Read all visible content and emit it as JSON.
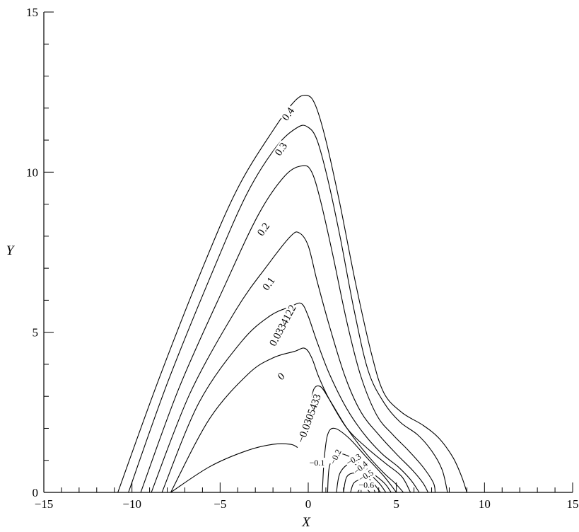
{
  "chart_data": {
    "type": "contour",
    "xlabel": "X",
    "ylabel": "Y",
    "xlim": [
      -15,
      15
    ],
    "ylim": [
      0,
      15
    ],
    "x_ticks": [
      "-15",
      "-10",
      "-5",
      "0",
      "5",
      "10",
      "15"
    ],
    "y_ticks": [
      "0",
      "5",
      "10",
      "15"
    ],
    "contours": [
      {
        "level": "0.4",
        "points": [
          [
            -10.8,
            0
          ],
          [
            -8.5,
            3.5
          ],
          [
            -6,
            7
          ],
          [
            -4,
            9.5
          ],
          [
            -2,
            11.3
          ],
          [
            -0.8,
            12.2
          ],
          [
            -0.1,
            12.4
          ],
          [
            0.4,
            12.1
          ],
          [
            1,
            11
          ],
          [
            1.8,
            9
          ],
          [
            2.7,
            6.5
          ],
          [
            3.6,
            4.3
          ],
          [
            4.3,
            3.1
          ],
          [
            5.3,
            2.5
          ],
          [
            6.5,
            2.1
          ],
          [
            7.4,
            1.7
          ],
          [
            8.2,
            1.1
          ],
          [
            8.7,
            0.5
          ],
          [
            9,
            0
          ]
        ]
      },
      {
        "level": "0.3",
        "points": [
          [
            -10.2,
            0
          ],
          [
            -8,
            3.4
          ],
          [
            -5.5,
            6.8
          ],
          [
            -3.5,
            9.3
          ],
          [
            -1.8,
            10.8
          ],
          [
            -0.6,
            11.4
          ],
          [
            0,
            11.4
          ],
          [
            0.5,
            11
          ],
          [
            1.1,
            9.8
          ],
          [
            1.8,
            8
          ],
          [
            2.6,
            5.7
          ],
          [
            3.4,
            3.8
          ],
          [
            4.3,
            2.8
          ],
          [
            5.2,
            2.2
          ],
          [
            6.2,
            1.8
          ],
          [
            7,
            1.3
          ],
          [
            7.6,
            0.7
          ],
          [
            7.9,
            0
          ]
        ]
      },
      {
        "level": "0.2",
        "points": [
          [
            -9.5,
            0
          ],
          [
            -7.3,
            3.3
          ],
          [
            -4.7,
            6.5
          ],
          [
            -2.8,
            8.7
          ],
          [
            -1.3,
            9.9
          ],
          [
            -0.3,
            10.2
          ],
          [
            0.2,
            10
          ],
          [
            0.7,
            9.1
          ],
          [
            1.4,
            7.4
          ],
          [
            2.2,
            5.3
          ],
          [
            3,
            3.6
          ],
          [
            3.9,
            2.4
          ],
          [
            4.8,
            1.8
          ],
          [
            5.7,
            1.3
          ],
          [
            6.5,
            0.8
          ],
          [
            7.1,
            0.3
          ],
          [
            7.2,
            0
          ]
        ]
      },
      {
        "level": "0.1",
        "points": [
          [
            -8.9,
            0
          ],
          [
            -6.7,
            3.1
          ],
          [
            -4.1,
            5.7
          ],
          [
            -2.3,
            7.1
          ],
          [
            -1,
            8
          ],
          [
            -0.5,
            8.1
          ],
          [
            0,
            7.7
          ],
          [
            0.5,
            6.6
          ],
          [
            1.2,
            5.2
          ],
          [
            2.1,
            3.6
          ],
          [
            3,
            2.5
          ],
          [
            4,
            1.8
          ],
          [
            5,
            1.2
          ],
          [
            5.9,
            0.7
          ],
          [
            6.5,
            0.3
          ],
          [
            6.8,
            0
          ]
        ]
      },
      {
        "level": "0.0334122",
        "points": [
          [
            -8.3,
            0
          ],
          [
            -6.2,
            2.8
          ],
          [
            -3.8,
            4.7
          ],
          [
            -2.2,
            5.5
          ],
          [
            -1,
            5.8
          ],
          [
            -0.4,
            5.9
          ],
          [
            0,
            5.5
          ],
          [
            0.5,
            4.7
          ],
          [
            1.2,
            3.7
          ],
          [
            2.2,
            2.6
          ],
          [
            3.2,
            1.8
          ],
          [
            4.2,
            1.2
          ],
          [
            5.1,
            0.8
          ],
          [
            5.8,
            0.4
          ],
          [
            6.3,
            0
          ]
        ]
      },
      {
        "level": "0",
        "points": [
          [
            -7.8,
            0
          ],
          [
            -5.6,
            2.3
          ],
          [
            -3.4,
            3.7
          ],
          [
            -2,
            4.2
          ],
          [
            -0.8,
            4.4
          ],
          [
            -0.2,
            4.5
          ],
          [
            0.2,
            4.2
          ],
          [
            0.6,
            3.6
          ],
          [
            1.2,
            2.9
          ],
          [
            2.2,
            2
          ],
          [
            3.3,
            1.4
          ],
          [
            4.4,
            0.9
          ],
          [
            5.3,
            0.5
          ],
          [
            5.8,
            0
          ]
        ]
      },
      {
        "level": "-0.0305433",
        "points": [
          [
            -7.8,
            0
          ],
          [
            -5.6,
            0.8
          ],
          [
            -3.5,
            1.3
          ],
          [
            -2,
            1.5
          ],
          [
            -1,
            1.5
          ],
          [
            -0.6,
            1.4
          ]
        ]
      },
      {
        "level": "-0.0305433",
        "points": [
          [
            0.1,
            2.5
          ],
          [
            0.3,
            3.2
          ],
          [
            0.7,
            3.3
          ],
          [
            1.2,
            2.9
          ],
          [
            2.2,
            2
          ],
          [
            3.3,
            1.2
          ],
          [
            4.3,
            0.6
          ],
          [
            4.9,
            0.3
          ],
          [
            5.4,
            0
          ]
        ]
      },
      {
        "level": "-0.1",
        "points": [
          [
            0.8,
            0
          ],
          [
            0.9,
            1
          ],
          [
            1.1,
            1.8
          ],
          [
            1.5,
            2
          ],
          [
            2.3,
            1.7
          ],
          [
            3.3,
            1.1
          ],
          [
            4.3,
            0.5
          ],
          [
            5,
            0
          ]
        ]
      },
      {
        "level": "-0.2",
        "points": [
          [
            1.1,
            0
          ],
          [
            1.2,
            0.8
          ],
          [
            1.6,
            1.2
          ],
          [
            2.4,
            1.1
          ],
          [
            3.4,
            0.7
          ],
          [
            4.3,
            0.3
          ],
          [
            4.7,
            0
          ]
        ]
      },
      {
        "level": "-0.3",
        "points": [
          [
            1.6,
            0
          ],
          [
            1.8,
            0.6
          ],
          [
            2.4,
            0.9
          ],
          [
            3.2,
            0.7
          ],
          [
            4,
            0.3
          ],
          [
            4.4,
            0
          ]
        ]
      },
      {
        "level": "-0.4",
        "points": [
          [
            2,
            0
          ],
          [
            2.2,
            0.5
          ],
          [
            2.8,
            0.6
          ],
          [
            3.5,
            0.4
          ],
          [
            4.1,
            0
          ]
        ]
      },
      {
        "level": "-0.5",
        "points": [
          [
            2.4,
            0
          ],
          [
            2.6,
            0.3
          ],
          [
            3.1,
            0.4
          ],
          [
            3.6,
            0.2
          ],
          [
            3.8,
            0
          ]
        ]
      },
      {
        "level": "-0.6",
        "points": [
          [
            2.8,
            0
          ],
          [
            3.1,
            0.2
          ],
          [
            3.5,
            0
          ]
        ]
      }
    ],
    "labels": [
      {
        "text": "0.4",
        "x": -1.1,
        "y": 11.8,
        "angle": -55,
        "size": "lg"
      },
      {
        "text": "0.3",
        "x": -1.5,
        "y": 10.7,
        "angle": -55,
        "size": "lg"
      },
      {
        "text": "0.2",
        "x": -2.5,
        "y": 8.2,
        "angle": -55,
        "size": "lg"
      },
      {
        "text": "0.1",
        "x": -2.2,
        "y": 6.5,
        "angle": -55,
        "size": "lg"
      },
      {
        "text": "0.0334122",
        "x": -1.4,
        "y": 5.2,
        "angle": -62,
        "size": "lg"
      },
      {
        "text": "0",
        "x": -1.5,
        "y": 3.6,
        "angle": -40,
        "size": "lg"
      },
      {
        "text": "-0.0305433",
        "x": 0.1,
        "y": 2.3,
        "angle": -70,
        "size": "lg"
      },
      {
        "text": "-0.1",
        "x": 0.5,
        "y": 0.9,
        "angle": 0,
        "size": "sm"
      },
      {
        "text": "-0.2",
        "x": 1.6,
        "y": 1.1,
        "angle": -65,
        "size": "sm"
      },
      {
        "text": "-0.3",
        "x": 2.6,
        "y": 1.0,
        "angle": -30,
        "size": "sm"
      },
      {
        "text": "-0.4",
        "x": 3.0,
        "y": 0.75,
        "angle": -40,
        "size": "sm"
      },
      {
        "text": "-0.5",
        "x": 3.3,
        "y": 0.5,
        "angle": -30,
        "size": "sm"
      },
      {
        "text": "-0.6",
        "x": 3.3,
        "y": 0.2,
        "angle": 0,
        "size": "sm"
      }
    ]
  }
}
